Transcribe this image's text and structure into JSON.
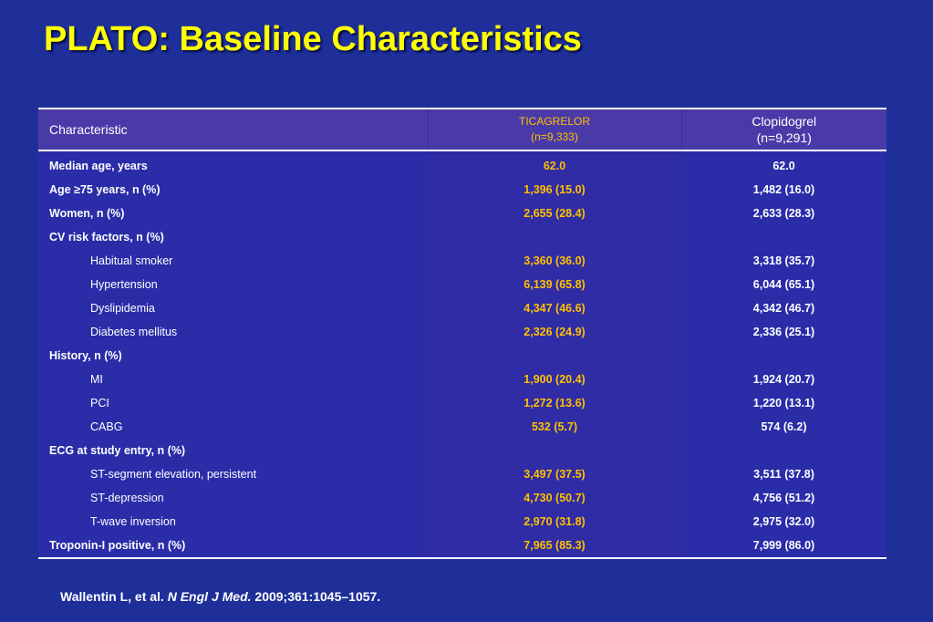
{
  "title": "PLATO: Baseline Characteristics",
  "colors": {
    "title": "#ffff00",
    "background": "#1f2f99",
    "ticagrelor": "#ffc000"
  },
  "table": {
    "headers": {
      "characteristic": "Characteristic",
      "ticagrelor": {
        "name": "TICAGRELOR",
        "n": "(n=9,333)"
      },
      "clopidogrel": {
        "name": "Clopidogrel",
        "n": "(n=9,291)"
      }
    },
    "rows": [
      {
        "label": "Median age, years",
        "ticagrelor": "62.0",
        "clopidogrel": "62.0",
        "indent": false
      },
      {
        "label": "Age ≥75 years, n (%)",
        "ticagrelor": "1,396 (15.0)",
        "clopidogrel": "1,482 (16.0)",
        "indent": false
      },
      {
        "label": "Women, n (%)",
        "ticagrelor": "2,655 (28.4)",
        "clopidogrel": "2,633 (28.3)",
        "indent": false
      },
      {
        "label": "CV risk factors,  n (%)",
        "ticagrelor": "",
        "clopidogrel": "",
        "indent": false
      },
      {
        "label": "Habitual smoker",
        "ticagrelor": "3,360 (36.0)",
        "clopidogrel": "3,318 (35.7)",
        "indent": true
      },
      {
        "label": "Hypertension",
        "ticagrelor": "6,139 (65.8)",
        "clopidogrel": "6,044 (65.1)",
        "indent": true
      },
      {
        "label": "Dyslipidemia",
        "ticagrelor": "4,347 (46.6)",
        "clopidogrel": "4,342 (46.7)",
        "indent": true
      },
      {
        "label": "Diabetes mellitus",
        "ticagrelor": "2,326 (24.9)",
        "clopidogrel": "2,336 (25.1)",
        "indent": true
      },
      {
        "label": "History, n (%)",
        "ticagrelor": "",
        "clopidogrel": "",
        "indent": false
      },
      {
        "label": "MI",
        "ticagrelor": "1,900 (20.4)",
        "clopidogrel": "1,924 (20.7)",
        "indent": true
      },
      {
        "label": "PCI",
        "ticagrelor": "1,272 (13.6)",
        "clopidogrel": "1,220 (13.1)",
        "indent": true
      },
      {
        "label": "CABG",
        "ticagrelor": "532 (5.7)",
        "clopidogrel": "574 (6.2)",
        "indent": true
      },
      {
        "label": "ECG at study entry, n (%)",
        "ticagrelor": "",
        "clopidogrel": "",
        "indent": false
      },
      {
        "label": "ST-segment elevation, persistent",
        "ticagrelor": "3,497 (37.5)",
        "clopidogrel": "3,511 (37.8)",
        "indent": true
      },
      {
        "label": "ST-depression",
        "ticagrelor": "4,730 (50.7)",
        "clopidogrel": "4,756 (51.2)",
        "indent": true
      },
      {
        "label": "T-wave inversion",
        "ticagrelor": "2,970 (31.8)",
        "clopidogrel": "2,975 (32.0)",
        "indent": true
      },
      {
        "label": "Troponin-I positive, n (%)",
        "ticagrelor": "7,965 (85.3)",
        "clopidogrel": "7,999 (86.0)",
        "indent": false
      }
    ]
  },
  "citation": {
    "authors": "Wallentin L, et al.",
    "journal": "N Engl J Med.",
    "details": "2009;361:1045–1057."
  }
}
